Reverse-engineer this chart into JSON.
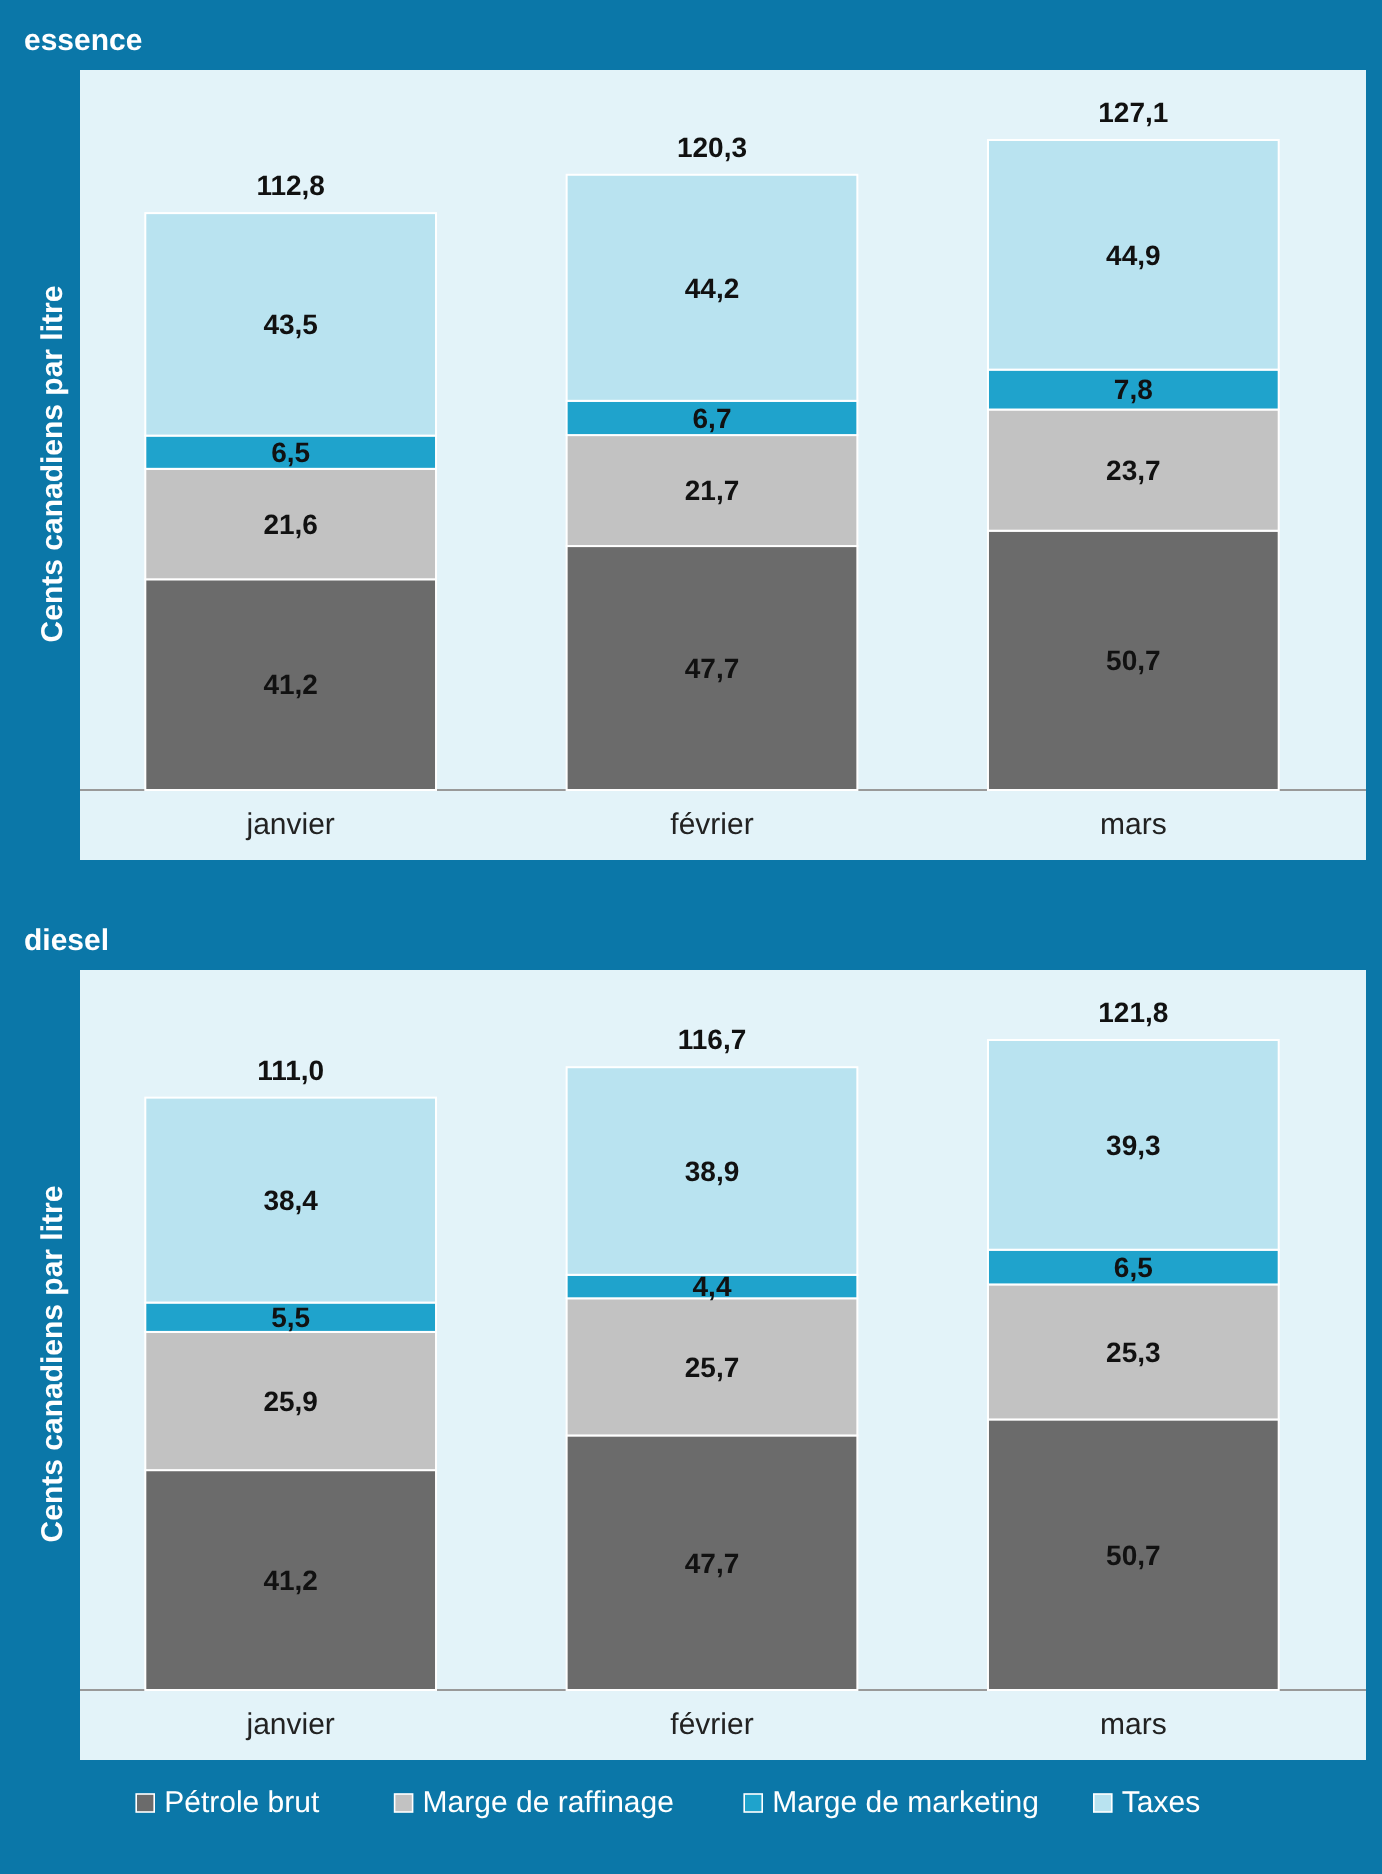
{
  "chart_data": [
    {
      "type": "bar",
      "title": "essence",
      "ylabel": "Cents canadiens par litre",
      "categories": [
        "janvier",
        "février",
        "mars"
      ],
      "stacked": true,
      "legend": "bottom",
      "series": [
        {
          "name": "Pétrole brut",
          "color": "#6b6b6b",
          "values": [
            41.2,
            47.7,
            50.7
          ],
          "value_labels": [
            "41,2",
            "47,7",
            "50,7"
          ]
        },
        {
          "name": "Marge de raffinage",
          "color": "#c2c2c2",
          "values": [
            21.6,
            21.7,
            23.7
          ],
          "value_labels": [
            "21,6",
            "21,7",
            "23,7"
          ]
        },
        {
          "name": "Marge de marketing",
          "color": "#1fa3cc",
          "values": [
            6.5,
            6.7,
            7.8
          ],
          "value_labels": [
            "6,5",
            "6,7",
            "7,8"
          ]
        },
        {
          "name": "Taxes",
          "color": "#b9e3f0",
          "values": [
            43.5,
            44.2,
            44.9
          ],
          "value_labels": [
            "43,5",
            "44,2",
            "44,9"
          ]
        }
      ],
      "totals": [
        "112,8",
        "120,3",
        "127,1"
      ]
    },
    {
      "type": "bar",
      "title": "diesel",
      "ylabel": "Cents canadiens par litre",
      "categories": [
        "janvier",
        "février",
        "mars"
      ],
      "stacked": true,
      "series": [
        {
          "color": "#6b6b6b",
          "values": [
            41.2,
            47.7,
            50.7
          ],
          "value_labels": [
            "41,2",
            "47,7",
            "50,7"
          ]
        },
        {
          "color": "#c2c2c2",
          "values": [
            25.9,
            25.7,
            25.3
          ],
          "value_labels": [
            "25,9",
            "25,7",
            "25,3"
          ]
        },
        {
          "color": "#1fa3cc",
          "values": [
            5.5,
            4.4,
            6.5
          ],
          "value_labels": [
            "5,5",
            "4,4",
            "6,5"
          ]
        },
        {
          "color": "#b9e3f0",
          "values": [
            38.4,
            38.9,
            39.3
          ],
          "value_labels": [
            "38,4",
            "38,9",
            "39,3"
          ]
        }
      ],
      "totals": [
        "111,0",
        "116,7",
        "121,8"
      ]
    }
  ]
}
